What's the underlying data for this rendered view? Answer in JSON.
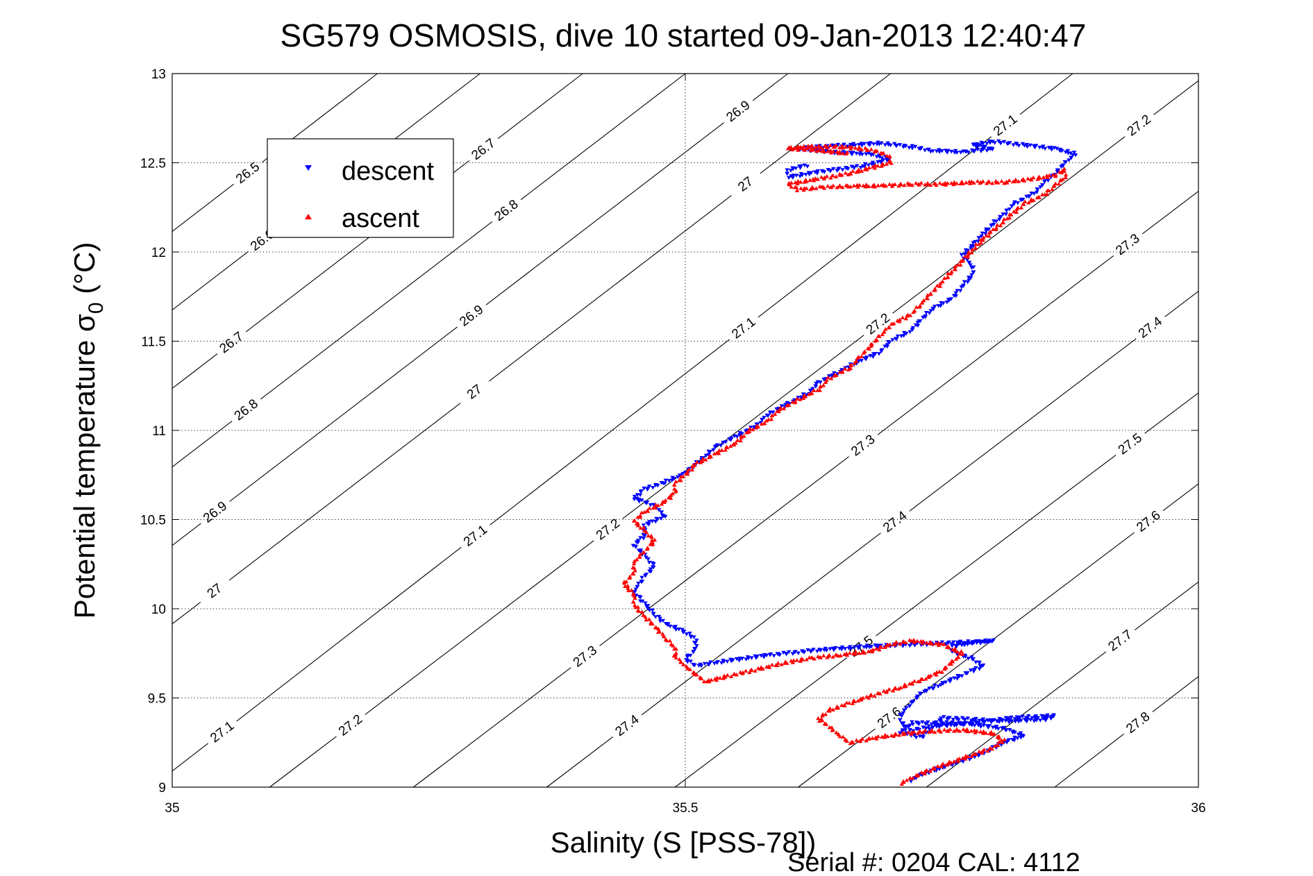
{
  "chart_data": {
    "type": "scatter",
    "title": "SG579 OSMOSIS, dive 10 started 09-Jan-2013 12:40:47",
    "xlabel": "Salinity (S [PSS-78])",
    "ylabel": "Potential temperature σ",
    "ylabel_subscript": "0",
    "ylabel_unit": " (°C)",
    "xlim": [
      35,
      36
    ],
    "ylim": [
      9,
      13
    ],
    "xticks": [
      "35",
      "35.5",
      "36"
    ],
    "yticks": [
      "9",
      "9.5",
      "10",
      "10.5",
      "11",
      "11.5",
      "12",
      "12.5",
      "13"
    ],
    "grid": true,
    "legend_position": "top-left",
    "series": [
      {
        "name": "descent",
        "color": "#0000ff",
        "marker": "triangle-down",
        "path": [
          [
            35.72,
            9.04
          ],
          [
            35.73,
            9.07
          ],
          [
            35.76,
            9.13
          ],
          [
            35.79,
            9.19
          ],
          [
            35.81,
            9.25
          ],
          [
            35.83,
            9.29
          ],
          [
            35.81,
            9.33
          ],
          [
            35.77,
            9.36
          ],
          [
            35.72,
            9.36
          ],
          [
            35.71,
            9.31
          ],
          [
            35.73,
            9.28
          ],
          [
            35.75,
            9.39
          ],
          [
            35.78,
            9.38
          ],
          [
            35.81,
            9.37
          ],
          [
            35.85,
            9.38
          ],
          [
            35.86,
            9.4
          ],
          [
            35.82,
            9.39
          ],
          [
            35.78,
            9.36
          ],
          [
            35.74,
            9.34
          ],
          [
            35.72,
            9.32
          ],
          [
            35.71,
            9.36
          ],
          [
            35.71,
            9.41
          ],
          [
            35.72,
            9.47
          ],
          [
            35.73,
            9.53
          ],
          [
            35.75,
            9.58
          ],
          [
            35.77,
            9.63
          ],
          [
            35.79,
            9.68
          ],
          [
            35.78,
            9.72
          ],
          [
            35.76,
            9.76
          ],
          [
            35.76,
            9.79
          ],
          [
            35.78,
            9.81
          ],
          [
            35.8,
            9.82
          ],
          [
            35.76,
            9.81
          ],
          [
            35.72,
            9.8
          ],
          [
            35.68,
            9.79
          ],
          [
            35.63,
            9.77
          ],
          [
            35.58,
            9.74
          ],
          [
            35.53,
            9.7
          ],
          [
            35.51,
            9.68
          ],
          [
            35.5,
            9.72
          ],
          [
            35.51,
            9.77
          ],
          [
            35.51,
            9.83
          ],
          [
            35.5,
            9.87
          ],
          [
            35.48,
            9.92
          ],
          [
            35.47,
            9.97
          ],
          [
            35.46,
            10.03
          ],
          [
            35.45,
            10.1
          ],
          [
            35.46,
            10.18
          ],
          [
            35.47,
            10.24
          ],
          [
            35.46,
            10.3
          ],
          [
            35.45,
            10.36
          ],
          [
            35.46,
            10.41
          ],
          [
            35.46,
            10.47
          ],
          [
            35.48,
            10.52
          ],
          [
            35.47,
            10.58
          ],
          [
            35.45,
            10.62
          ],
          [
            35.46,
            10.67
          ],
          [
            35.48,
            10.71
          ],
          [
            35.5,
            10.76
          ],
          [
            35.51,
            10.81
          ],
          [
            35.52,
            10.86
          ],
          [
            35.53,
            10.91
          ],
          [
            35.55,
            10.97
          ],
          [
            35.57,
            11.03
          ],
          [
            35.58,
            11.09
          ],
          [
            35.6,
            11.15
          ],
          [
            35.62,
            11.21
          ],
          [
            35.63,
            11.27
          ],
          [
            35.65,
            11.33
          ],
          [
            35.67,
            11.39
          ],
          [
            35.69,
            11.44
          ],
          [
            35.7,
            11.5
          ],
          [
            35.72,
            11.56
          ],
          [
            35.73,
            11.62
          ],
          [
            35.74,
            11.68
          ],
          [
            35.76,
            11.74
          ],
          [
            35.77,
            11.81
          ],
          [
            35.78,
            11.87
          ],
          [
            35.78,
            11.92
          ],
          [
            35.77,
            11.98
          ],
          [
            35.78,
            12.04
          ],
          [
            35.79,
            12.1
          ],
          [
            35.8,
            12.16
          ],
          [
            35.81,
            12.21
          ],
          [
            35.82,
            12.27
          ],
          [
            35.84,
            12.33
          ],
          [
            35.85,
            12.39
          ],
          [
            35.86,
            12.44
          ],
          [
            35.87,
            12.5
          ],
          [
            35.88,
            12.55
          ],
          [
            35.86,
            12.58
          ],
          [
            35.83,
            12.6
          ],
          [
            35.8,
            12.62
          ],
          [
            35.78,
            12.6
          ],
          [
            35.8,
            12.58
          ],
          [
            35.77,
            12.56
          ],
          [
            35.74,
            12.57
          ],
          [
            35.72,
            12.59
          ],
          [
            35.69,
            12.61
          ],
          [
            35.66,
            12.6
          ],
          [
            35.63,
            12.59
          ],
          [
            35.61,
            12.58
          ],
          [
            35.64,
            12.56
          ],
          [
            35.68,
            12.55
          ],
          [
            35.7,
            12.52
          ],
          [
            35.67,
            12.48
          ],
          [
            35.63,
            12.45
          ],
          [
            35.6,
            12.42
          ],
          [
            35.6,
            12.46
          ],
          [
            35.62,
            12.49
          ]
        ]
      },
      {
        "name": "ascent",
        "color": "#ff0000",
        "marker": "triangle-up",
        "path": [
          [
            35.71,
            9.02
          ],
          [
            35.72,
            9.05
          ],
          [
            35.74,
            9.1
          ],
          [
            35.76,
            9.14
          ],
          [
            35.78,
            9.18
          ],
          [
            35.8,
            9.22
          ],
          [
            35.81,
            9.26
          ],
          [
            35.8,
            9.3
          ],
          [
            35.77,
            9.32
          ],
          [
            35.73,
            9.31
          ],
          [
            35.7,
            9.29
          ],
          [
            35.68,
            9.27
          ],
          [
            35.66,
            9.25
          ],
          [
            35.65,
            9.29
          ],
          [
            35.64,
            9.34
          ],
          [
            35.63,
            9.38
          ],
          [
            35.64,
            9.43
          ],
          [
            35.66,
            9.47
          ],
          [
            35.68,
            9.51
          ],
          [
            35.71,
            9.56
          ],
          [
            35.73,
            9.6
          ],
          [
            35.75,
            9.65
          ],
          [
            35.76,
            9.7
          ],
          [
            35.77,
            9.75
          ],
          [
            35.75,
            9.8
          ],
          [
            35.72,
            9.82
          ],
          [
            35.7,
            9.8
          ],
          [
            35.68,
            9.76
          ],
          [
            35.65,
            9.74
          ],
          [
            35.62,
            9.72
          ],
          [
            35.6,
            9.7
          ],
          [
            35.57,
            9.66
          ],
          [
            35.54,
            9.62
          ],
          [
            35.52,
            9.59
          ],
          [
            35.51,
            9.63
          ],
          [
            35.5,
            9.68
          ],
          [
            35.49,
            9.73
          ],
          [
            35.49,
            9.78
          ],
          [
            35.48,
            9.84
          ],
          [
            35.47,
            9.9
          ],
          [
            35.46,
            9.96
          ],
          [
            35.45,
            10.02
          ],
          [
            35.45,
            10.08
          ],
          [
            35.44,
            10.14
          ],
          [
            35.45,
            10.2
          ],
          [
            35.45,
            10.26
          ],
          [
            35.46,
            10.32
          ],
          [
            35.47,
            10.38
          ],
          [
            35.46,
            10.44
          ],
          [
            35.45,
            10.49
          ],
          [
            35.46,
            10.54
          ],
          [
            35.48,
            10.6
          ],
          [
            35.49,
            10.65
          ],
          [
            35.49,
            10.7
          ],
          [
            35.5,
            10.75
          ],
          [
            35.51,
            10.81
          ],
          [
            35.53,
            10.87
          ],
          [
            35.55,
            10.93
          ],
          [
            35.56,
            10.99
          ],
          [
            35.58,
            11.05
          ],
          [
            35.59,
            11.11
          ],
          [
            35.61,
            11.17
          ],
          [
            35.63,
            11.23
          ],
          [
            35.64,
            11.29
          ],
          [
            35.66,
            11.35
          ],
          [
            35.67,
            11.41
          ],
          [
            35.68,
            11.47
          ],
          [
            35.69,
            11.53
          ],
          [
            35.7,
            11.59
          ],
          [
            35.72,
            11.65
          ],
          [
            35.73,
            11.71
          ],
          [
            35.74,
            11.77
          ],
          [
            35.75,
            11.83
          ],
          [
            35.76,
            11.89
          ],
          [
            35.77,
            11.95
          ],
          [
            35.78,
            12.01
          ],
          [
            35.79,
            12.07
          ],
          [
            35.8,
            12.12
          ],
          [
            35.81,
            12.17
          ],
          [
            35.82,
            12.22
          ],
          [
            35.83,
            12.27
          ],
          [
            35.85,
            12.32
          ],
          [
            35.86,
            12.37
          ],
          [
            35.87,
            12.42
          ],
          [
            35.87,
            12.46
          ],
          [
            35.86,
            12.43
          ],
          [
            35.84,
            12.41
          ],
          [
            35.81,
            12.39
          ],
          [
            35.78,
            12.39
          ],
          [
            35.75,
            12.38
          ],
          [
            35.72,
            12.38
          ],
          [
            35.69,
            12.37
          ],
          [
            35.66,
            12.37
          ],
          [
            35.63,
            12.36
          ],
          [
            35.61,
            12.35
          ],
          [
            35.6,
            12.38
          ],
          [
            35.63,
            12.41
          ],
          [
            35.66,
            12.44
          ],
          [
            35.68,
            12.47
          ],
          [
            35.7,
            12.5
          ],
          [
            35.7,
            12.53
          ],
          [
            35.69,
            12.56
          ],
          [
            35.67,
            12.58
          ],
          [
            35.65,
            12.59
          ],
          [
            35.62,
            12.59
          ],
          [
            35.6,
            12.58
          ],
          [
            35.63,
            12.57
          ],
          [
            35.66,
            12.55
          ]
        ]
      }
    ],
    "contours": [
      {
        "label": "26.5",
        "x1": 35,
        "y1": 12.115,
        "x2": 35.2,
        "y2": 13.0,
        "labels": [
          [
            35.05,
            12.62
          ]
        ]
      },
      {
        "label": "26.6",
        "x1": 35,
        "y1": 11.675,
        "x2": 35.3,
        "y2": 13.0,
        "labels": [
          [
            35.07,
            12.2
          ]
        ]
      },
      {
        "label": "26.7",
        "x1": 35,
        "y1": 11.235,
        "x2": 35.4,
        "y2": 13.0,
        "labels": [
          [
            35.05,
            11.55
          ],
          [
            35.3,
            12.6
          ]
        ]
      },
      {
        "label": "26.8",
        "x1": 35,
        "y1": 10.795,
        "x2": 35.5,
        "y2": 13.0,
        "labels": [
          [
            35.07,
            11.13
          ],
          [
            35.33,
            12.2
          ]
        ]
      },
      {
        "label": "26.9",
        "x1": 35,
        "y1": 10.355,
        "x2": 35.6,
        "y2": 13.0,
        "labels": [
          [
            35.05,
            10.48
          ],
          [
            35.3,
            11.58
          ],
          [
            35.57,
            12.65
          ]
        ]
      },
      {
        "label": "27",
        "x1": 35,
        "y1": 9.915,
        "x2": 35.7,
        "y2": 13.0,
        "labels": [
          [
            35.06,
            9.96
          ],
          [
            35.31,
            11.1
          ],
          [
            35.58,
            12.22
          ]
        ]
      },
      {
        "label": "27.1",
        "x1": 35,
        "y1": 9.09,
        "x2": 35.8775,
        "y2": 13.0,
        "labels": [
          [
            35.05,
            9.3
          ],
          [
            35.29,
            10.45
          ],
          [
            35.56,
            11.55
          ],
          [
            35.82,
            12.65
          ]
        ]
      },
      {
        "label": "27.2",
        "x1": 35.095,
        "y1": 9.0,
        "x2": 36.0,
        "y2": 12.96,
        "labels": [
          [
            35.18,
            9.3
          ],
          [
            35.42,
            10.48
          ],
          [
            35.69,
            11.58
          ],
          [
            35.95,
            12.65
          ]
        ]
      },
      {
        "label": "27.3",
        "x1": 35.235,
        "y1": 9.0,
        "x2": 36.0,
        "y2": 12.34,
        "labels": [
          [
            35.4,
            9.75
          ],
          [
            35.67,
            10.94
          ],
          [
            35.93,
            12.05
          ]
        ]
      },
      {
        "label": "27.4",
        "x1": 35.365,
        "y1": 9.0,
        "x2": 36.0,
        "y2": 11.78,
        "labels": [
          [
            35.44,
            9.37
          ],
          [
            35.7,
            10.52
          ],
          [
            35.95,
            11.6
          ]
        ]
      },
      {
        "label": "27.5",
        "x1": 35.49,
        "y1": 9.0,
        "x2": 36.0,
        "y2": 11.21,
        "labels": [
          [
            35.67,
            9.8
          ],
          [
            35.93,
            10.95
          ]
        ]
      },
      {
        "label": "27.6",
        "x1": 35.61,
        "y1": 9.0,
        "x2": 36.0,
        "y2": 10.7,
        "labels": [
          [
            35.7,
            9.38
          ],
          [
            35.95,
            10.5
          ]
        ]
      },
      {
        "label": "27.7",
        "x1": 35.735,
        "y1": 9.0,
        "x2": 36.0,
        "y2": 10.15,
        "labels": [
          [
            35.92,
            9.85
          ]
        ]
      },
      {
        "label": "27.8",
        "x1": 35.86,
        "y1": 9.0,
        "x2": 36.0,
        "y2": 9.62,
        "labels": [
          [
            35.94,
            9.37
          ]
        ]
      }
    ]
  },
  "footer": {
    "serial_text": "Serial #: 0204  CAL: 4112"
  }
}
